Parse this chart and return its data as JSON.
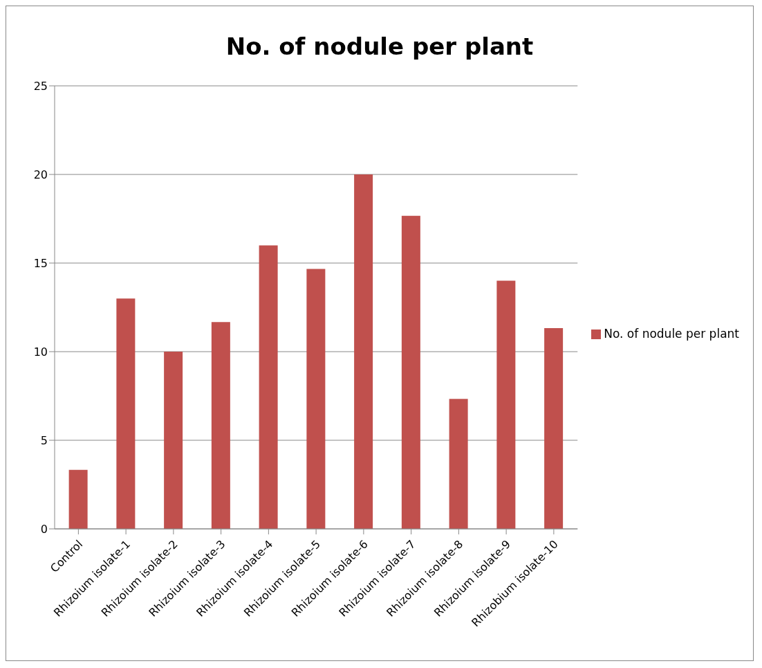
{
  "chart_data": {
    "type": "bar",
    "title": "No. of nodule per plant",
    "categories": [
      "Control",
      "Rhizoium isolate-1",
      "Rhizoium isolate-2",
      "Rhizoium isolate-3",
      "Rhizoium isolate-4",
      "Rhizoium isolate-5",
      "Rhizoium isolate-6",
      "Rhizoium isolate-7",
      "Rhizoium isolate-8",
      "Rhizoium isolate-9",
      "Rhizobium isolate-10"
    ],
    "series": [
      {
        "name": "No. of nodule per plant",
        "color": "#c0504d",
        "values": [
          3.33,
          13,
          10,
          11.67,
          16,
          14.67,
          20,
          17.67,
          7.33,
          14,
          11.33
        ]
      }
    ],
    "ylim": [
      0,
      25
    ],
    "yticks": [
      0,
      5,
      10,
      15,
      20,
      25
    ],
    "grid": "y",
    "legend": "right"
  }
}
